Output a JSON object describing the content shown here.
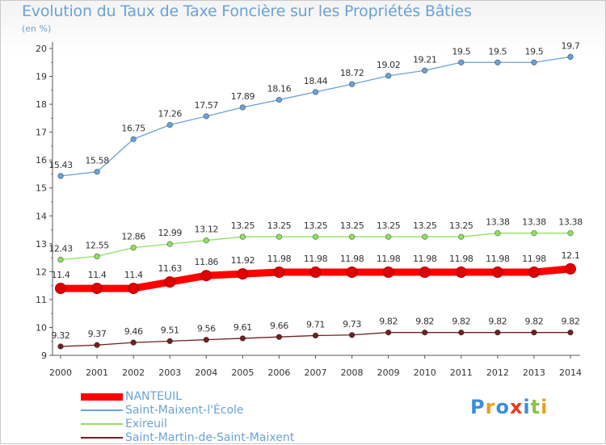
{
  "title": "Evolution du Taux de Taxe Foncière sur les Propriétés Bâties",
  "unit_label": "(en %)",
  "logo": {
    "letters": [
      "P",
      "r",
      "o",
      "x",
      "i",
      "t",
      "i"
    ],
    "colors": [
      "#3a8fd6",
      "#e8a020",
      "#3a8fd6",
      "#e63a1e",
      "#3a8fd6",
      "#8bc34a",
      "#e8a020"
    ]
  },
  "chart_data": {
    "type": "line",
    "title": "Evolution du Taux de Taxe Foncière sur les Propriétés Bâties",
    "ylabel": "(en %)",
    "xlabel": "",
    "x": [
      "2000",
      "2001",
      "2002",
      "2003",
      "2004",
      "2005",
      "2006",
      "2007",
      "2008",
      "2009",
      "2010",
      "2011",
      "2012",
      "2013",
      "2014"
    ],
    "ylim": [
      9,
      20
    ],
    "yticks": [
      "9",
      "10",
      "11",
      "12",
      "13",
      "14",
      "15",
      "16",
      "17",
      "18",
      "19",
      "20"
    ],
    "grid": false,
    "legend_position": "bottom-left",
    "series": [
      {
        "name": "NANTEUIL",
        "color": "#ff0000",
        "values": [
          11.4,
          11.4,
          11.4,
          11.63,
          11.86,
          11.92,
          11.98,
          11.98,
          11.98,
          11.98,
          11.98,
          11.98,
          11.98,
          11.98,
          12.1
        ],
        "labels": [
          "11.4",
          "11.4",
          "11.4",
          "11.63",
          "11.86",
          "11.92",
          "11.98",
          "11.98",
          "11.98",
          "11.98",
          "11.98",
          "11.98",
          "11.98",
          "11.98",
          "12.1"
        ]
      },
      {
        "name": "Saint-Maixent-l'École",
        "color": "#6aa2d6",
        "values": [
          15.43,
          15.58,
          16.75,
          17.26,
          17.57,
          17.89,
          18.16,
          18.44,
          18.72,
          19.02,
          19.21,
          19.5,
          19.5,
          19.5,
          19.7
        ],
        "labels": [
          "15.43",
          "15.58",
          "16.75",
          "17.26",
          "17.57",
          "17.89",
          "18.16",
          "18.44",
          "18.72",
          "19.02",
          "19.21",
          "19.5",
          "19.5",
          "19.5",
          "19.7"
        ]
      },
      {
        "name": "Exireuil",
        "color": "#90e060",
        "values": [
          12.43,
          12.55,
          12.86,
          12.99,
          13.12,
          13.25,
          13.25,
          13.25,
          13.25,
          13.25,
          13.25,
          13.25,
          13.38,
          13.38,
          13.38
        ],
        "labels": [
          "12.43",
          "12.55",
          "12.86",
          "12.99",
          "13.12",
          "13.25",
          "13.25",
          "13.25",
          "13.25",
          "13.25",
          "13.25",
          "13.25",
          "13.38",
          "13.38",
          "13.38"
        ]
      },
      {
        "name": "Saint-Martin-de-Saint-Maixent",
        "color": "#702020",
        "values": [
          9.32,
          9.37,
          9.46,
          9.51,
          9.56,
          9.61,
          9.66,
          9.71,
          9.73,
          9.82,
          9.82,
          9.82,
          9.82,
          9.82,
          9.82
        ],
        "labels": [
          "9.32",
          "9.37",
          "9.46",
          "9.51",
          "9.56",
          "9.61",
          "9.66",
          "9.71",
          "9.73",
          "9.82",
          "9.82",
          "9.82",
          "9.82",
          "9.82",
          "9.82"
        ]
      }
    ]
  }
}
